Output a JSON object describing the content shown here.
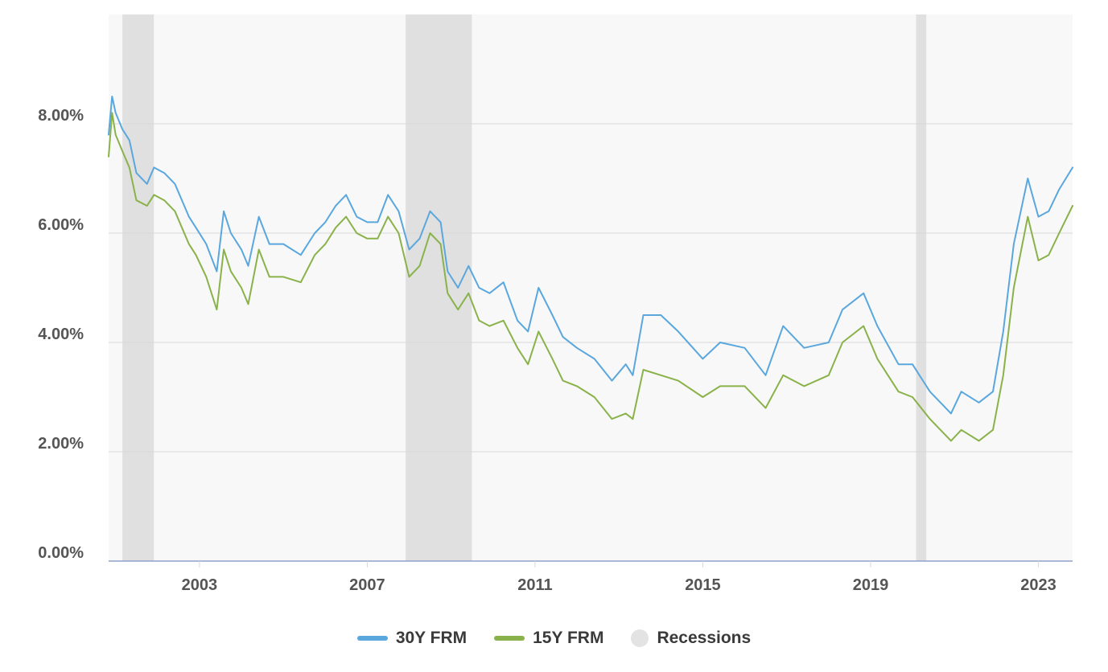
{
  "chart_data": {
    "type": "line",
    "x_range": [
      "2000-11-01",
      "2023-10-26"
    ],
    "ylim": [
      0,
      10
    ],
    "y_ticks": [
      "0.00%",
      "2.00%",
      "4.00%",
      "6.00%",
      "8.00%"
    ],
    "x_ticks": [
      "2003",
      "2007",
      "2011",
      "2015",
      "2019",
      "2023"
    ],
    "grid": true,
    "legend_position": "bottom",
    "recessions": [
      [
        "2001-03-01",
        "2001-11-30"
      ],
      [
        "2007-12-01",
        "2009-06-30"
      ],
      [
        "2020-02-01",
        "2020-04-30"
      ]
    ],
    "series": [
      {
        "name": "30Y FRM",
        "color": "#5aa7de",
        "points": [
          [
            "2000-11-01",
            7.8
          ],
          [
            "2000-12-01",
            8.5
          ],
          [
            "2001-01-01",
            8.2
          ],
          [
            "2001-03-01",
            7.9
          ],
          [
            "2001-05-01",
            7.7
          ],
          [
            "2001-07-01",
            7.1
          ],
          [
            "2001-10-01",
            6.9
          ],
          [
            "2001-12-01",
            7.2
          ],
          [
            "2002-03-01",
            7.1
          ],
          [
            "2002-06-01",
            6.9
          ],
          [
            "2002-10-01",
            6.3
          ],
          [
            "2002-12-01",
            6.1
          ],
          [
            "2003-03-01",
            5.8
          ],
          [
            "2003-06-01",
            5.3
          ],
          [
            "2003-08-01",
            6.4
          ],
          [
            "2003-10-01",
            6.0
          ],
          [
            "2004-01-01",
            5.7
          ],
          [
            "2004-03-01",
            5.4
          ],
          [
            "2004-06-01",
            6.3
          ],
          [
            "2004-09-01",
            5.8
          ],
          [
            "2005-01-01",
            5.8
          ],
          [
            "2005-06-01",
            5.6
          ],
          [
            "2005-10-01",
            6.0
          ],
          [
            "2006-01-01",
            6.2
          ],
          [
            "2006-04-01",
            6.5
          ],
          [
            "2006-07-01",
            6.7
          ],
          [
            "2006-10-01",
            6.3
          ],
          [
            "2007-01-01",
            6.2
          ],
          [
            "2007-04-01",
            6.2
          ],
          [
            "2007-07-01",
            6.7
          ],
          [
            "2007-10-01",
            6.4
          ],
          [
            "2008-01-01",
            5.7
          ],
          [
            "2008-04-01",
            5.9
          ],
          [
            "2008-07-01",
            6.4
          ],
          [
            "2008-10-01",
            6.2
          ],
          [
            "2008-12-01",
            5.3
          ],
          [
            "2009-03-01",
            5.0
          ],
          [
            "2009-06-01",
            5.4
          ],
          [
            "2009-09-01",
            5.0
          ],
          [
            "2009-12-01",
            4.9
          ],
          [
            "2010-04-01",
            5.1
          ],
          [
            "2010-08-01",
            4.4
          ],
          [
            "2010-11-01",
            4.2
          ],
          [
            "2011-02-01",
            5.0
          ],
          [
            "2011-06-01",
            4.5
          ],
          [
            "2011-09-01",
            4.1
          ],
          [
            "2012-01-01",
            3.9
          ],
          [
            "2012-06-01",
            3.7
          ],
          [
            "2012-11-01",
            3.3
          ],
          [
            "2013-03-01",
            3.6
          ],
          [
            "2013-05-01",
            3.4
          ],
          [
            "2013-08-01",
            4.5
          ],
          [
            "2014-01-01",
            4.5
          ],
          [
            "2014-06-01",
            4.2
          ],
          [
            "2015-01-01",
            3.7
          ],
          [
            "2015-06-01",
            4.0
          ],
          [
            "2016-01-01",
            3.9
          ],
          [
            "2016-07-01",
            3.4
          ],
          [
            "2016-12-01",
            4.3
          ],
          [
            "2017-06-01",
            3.9
          ],
          [
            "2018-01-01",
            4.0
          ],
          [
            "2018-05-01",
            4.6
          ],
          [
            "2018-11-01",
            4.9
          ],
          [
            "2019-03-01",
            4.3
          ],
          [
            "2019-09-01",
            3.6
          ],
          [
            "2020-01-01",
            3.6
          ],
          [
            "2020-06-01",
            3.1
          ],
          [
            "2020-12-01",
            2.7
          ],
          [
            "2021-03-01",
            3.1
          ],
          [
            "2021-08-01",
            2.9
          ],
          [
            "2021-12-01",
            3.1
          ],
          [
            "2022-03-01",
            4.2
          ],
          [
            "2022-06-01",
            5.8
          ],
          [
            "2022-10-01",
            7.0
          ],
          [
            "2023-01-01",
            6.3
          ],
          [
            "2023-04-01",
            6.4
          ],
          [
            "2023-07-01",
            6.8
          ],
          [
            "2023-10-26",
            7.2
          ]
        ]
      },
      {
        "name": "15Y FRM",
        "color": "#8ab24a",
        "points": [
          [
            "2000-11-01",
            7.4
          ],
          [
            "2000-12-01",
            8.2
          ],
          [
            "2001-01-01",
            7.8
          ],
          [
            "2001-03-01",
            7.5
          ],
          [
            "2001-05-01",
            7.2
          ],
          [
            "2001-07-01",
            6.6
          ],
          [
            "2001-10-01",
            6.5
          ],
          [
            "2001-12-01",
            6.7
          ],
          [
            "2002-03-01",
            6.6
          ],
          [
            "2002-06-01",
            6.4
          ],
          [
            "2002-10-01",
            5.8
          ],
          [
            "2002-12-01",
            5.6
          ],
          [
            "2003-03-01",
            5.2
          ],
          [
            "2003-06-01",
            4.6
          ],
          [
            "2003-08-01",
            5.7
          ],
          [
            "2003-10-01",
            5.3
          ],
          [
            "2004-01-01",
            5.0
          ],
          [
            "2004-03-01",
            4.7
          ],
          [
            "2004-06-01",
            5.7
          ],
          [
            "2004-09-01",
            5.2
          ],
          [
            "2005-01-01",
            5.2
          ],
          [
            "2005-06-01",
            5.1
          ],
          [
            "2005-10-01",
            5.6
          ],
          [
            "2006-01-01",
            5.8
          ],
          [
            "2006-04-01",
            6.1
          ],
          [
            "2006-07-01",
            6.3
          ],
          [
            "2006-10-01",
            6.0
          ],
          [
            "2007-01-01",
            5.9
          ],
          [
            "2007-04-01",
            5.9
          ],
          [
            "2007-07-01",
            6.3
          ],
          [
            "2007-10-01",
            6.0
          ],
          [
            "2008-01-01",
            5.2
          ],
          [
            "2008-04-01",
            5.4
          ],
          [
            "2008-07-01",
            6.0
          ],
          [
            "2008-10-01",
            5.8
          ],
          [
            "2008-12-01",
            4.9
          ],
          [
            "2009-03-01",
            4.6
          ],
          [
            "2009-06-01",
            4.9
          ],
          [
            "2009-09-01",
            4.4
          ],
          [
            "2009-12-01",
            4.3
          ],
          [
            "2010-04-01",
            4.4
          ],
          [
            "2010-08-01",
            3.9
          ],
          [
            "2010-11-01",
            3.6
          ],
          [
            "2011-02-01",
            4.2
          ],
          [
            "2011-06-01",
            3.7
          ],
          [
            "2011-09-01",
            3.3
          ],
          [
            "2012-01-01",
            3.2
          ],
          [
            "2012-06-01",
            3.0
          ],
          [
            "2012-11-01",
            2.6
          ],
          [
            "2013-03-01",
            2.7
          ],
          [
            "2013-05-01",
            2.6
          ],
          [
            "2013-08-01",
            3.5
          ],
          [
            "2014-01-01",
            3.4
          ],
          [
            "2014-06-01",
            3.3
          ],
          [
            "2015-01-01",
            3.0
          ],
          [
            "2015-06-01",
            3.2
          ],
          [
            "2016-01-01",
            3.2
          ],
          [
            "2016-07-01",
            2.8
          ],
          [
            "2016-12-01",
            3.4
          ],
          [
            "2017-06-01",
            3.2
          ],
          [
            "2018-01-01",
            3.4
          ],
          [
            "2018-05-01",
            4.0
          ],
          [
            "2018-11-01",
            4.3
          ],
          [
            "2019-03-01",
            3.7
          ],
          [
            "2019-09-01",
            3.1
          ],
          [
            "2020-01-01",
            3.0
          ],
          [
            "2020-06-01",
            2.6
          ],
          [
            "2020-12-01",
            2.2
          ],
          [
            "2021-03-01",
            2.4
          ],
          [
            "2021-08-01",
            2.2
          ],
          [
            "2021-12-01",
            2.4
          ],
          [
            "2022-03-01",
            3.4
          ],
          [
            "2022-06-01",
            5.0
          ],
          [
            "2022-10-01",
            6.3
          ],
          [
            "2023-01-01",
            5.5
          ],
          [
            "2023-04-01",
            5.6
          ],
          [
            "2023-07-01",
            6.0
          ],
          [
            "2023-10-26",
            6.5
          ]
        ]
      }
    ]
  },
  "legend": {
    "items": [
      {
        "label": "30Y FRM",
        "color": "#5aa7de",
        "icon": "line-swatch"
      },
      {
        "label": "15Y FRM",
        "color": "#8ab24a",
        "icon": "line-swatch"
      },
      {
        "label": "Recessions",
        "color": "#e3e3e3",
        "icon": "circle-swatch"
      }
    ]
  },
  "colors": {
    "plot_bg": "#f8f8f8",
    "grid": "#d9d9d9",
    "recession": "#e0e0e0",
    "axis": "#8da3c9"
  }
}
